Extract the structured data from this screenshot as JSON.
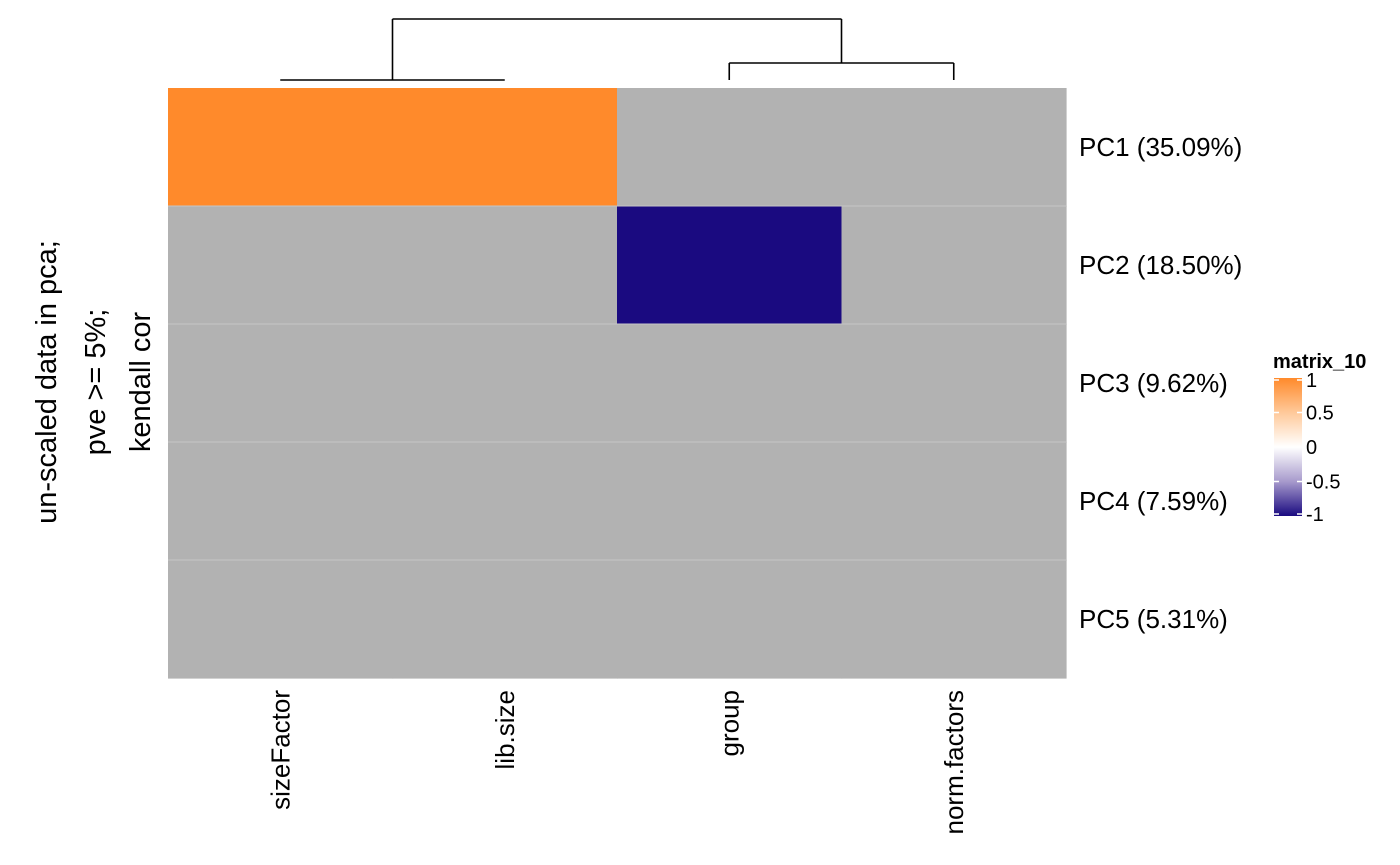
{
  "chart_data": {
    "type": "heatmap",
    "title_lines": [
      "un-scaled  data in pca;",
      "pve >= 5%;",
      "kendall cor"
    ],
    "columns": [
      "sizeFactor",
      "lib.size",
      "group",
      "norm.factors"
    ],
    "rows": [
      "PC1 (35.09%)",
      "PC2 (18.50%)",
      "PC3 (9.62%)",
      "PC4 (7.59%)",
      "PC5 (5.31%)"
    ],
    "values": [
      [
        1,
        1,
        null,
        null
      ],
      [
        null,
        null,
        -1,
        null
      ],
      [
        null,
        null,
        null,
        null
      ],
      [
        null,
        null,
        null,
        null
      ],
      [
        null,
        null,
        null,
        null
      ]
    ],
    "na_color": "#b2b2b2",
    "legend": {
      "title": "matrix_10",
      "ticks": [
        "1",
        "0.5",
        "0",
        "-0.5",
        "-1"
      ],
      "range": [
        -1,
        1
      ],
      "colors": {
        "high": "#ff8a2b",
        "mid": "#ffffff",
        "low": "#1a0a80"
      }
    },
    "column_dendrogram": true
  }
}
